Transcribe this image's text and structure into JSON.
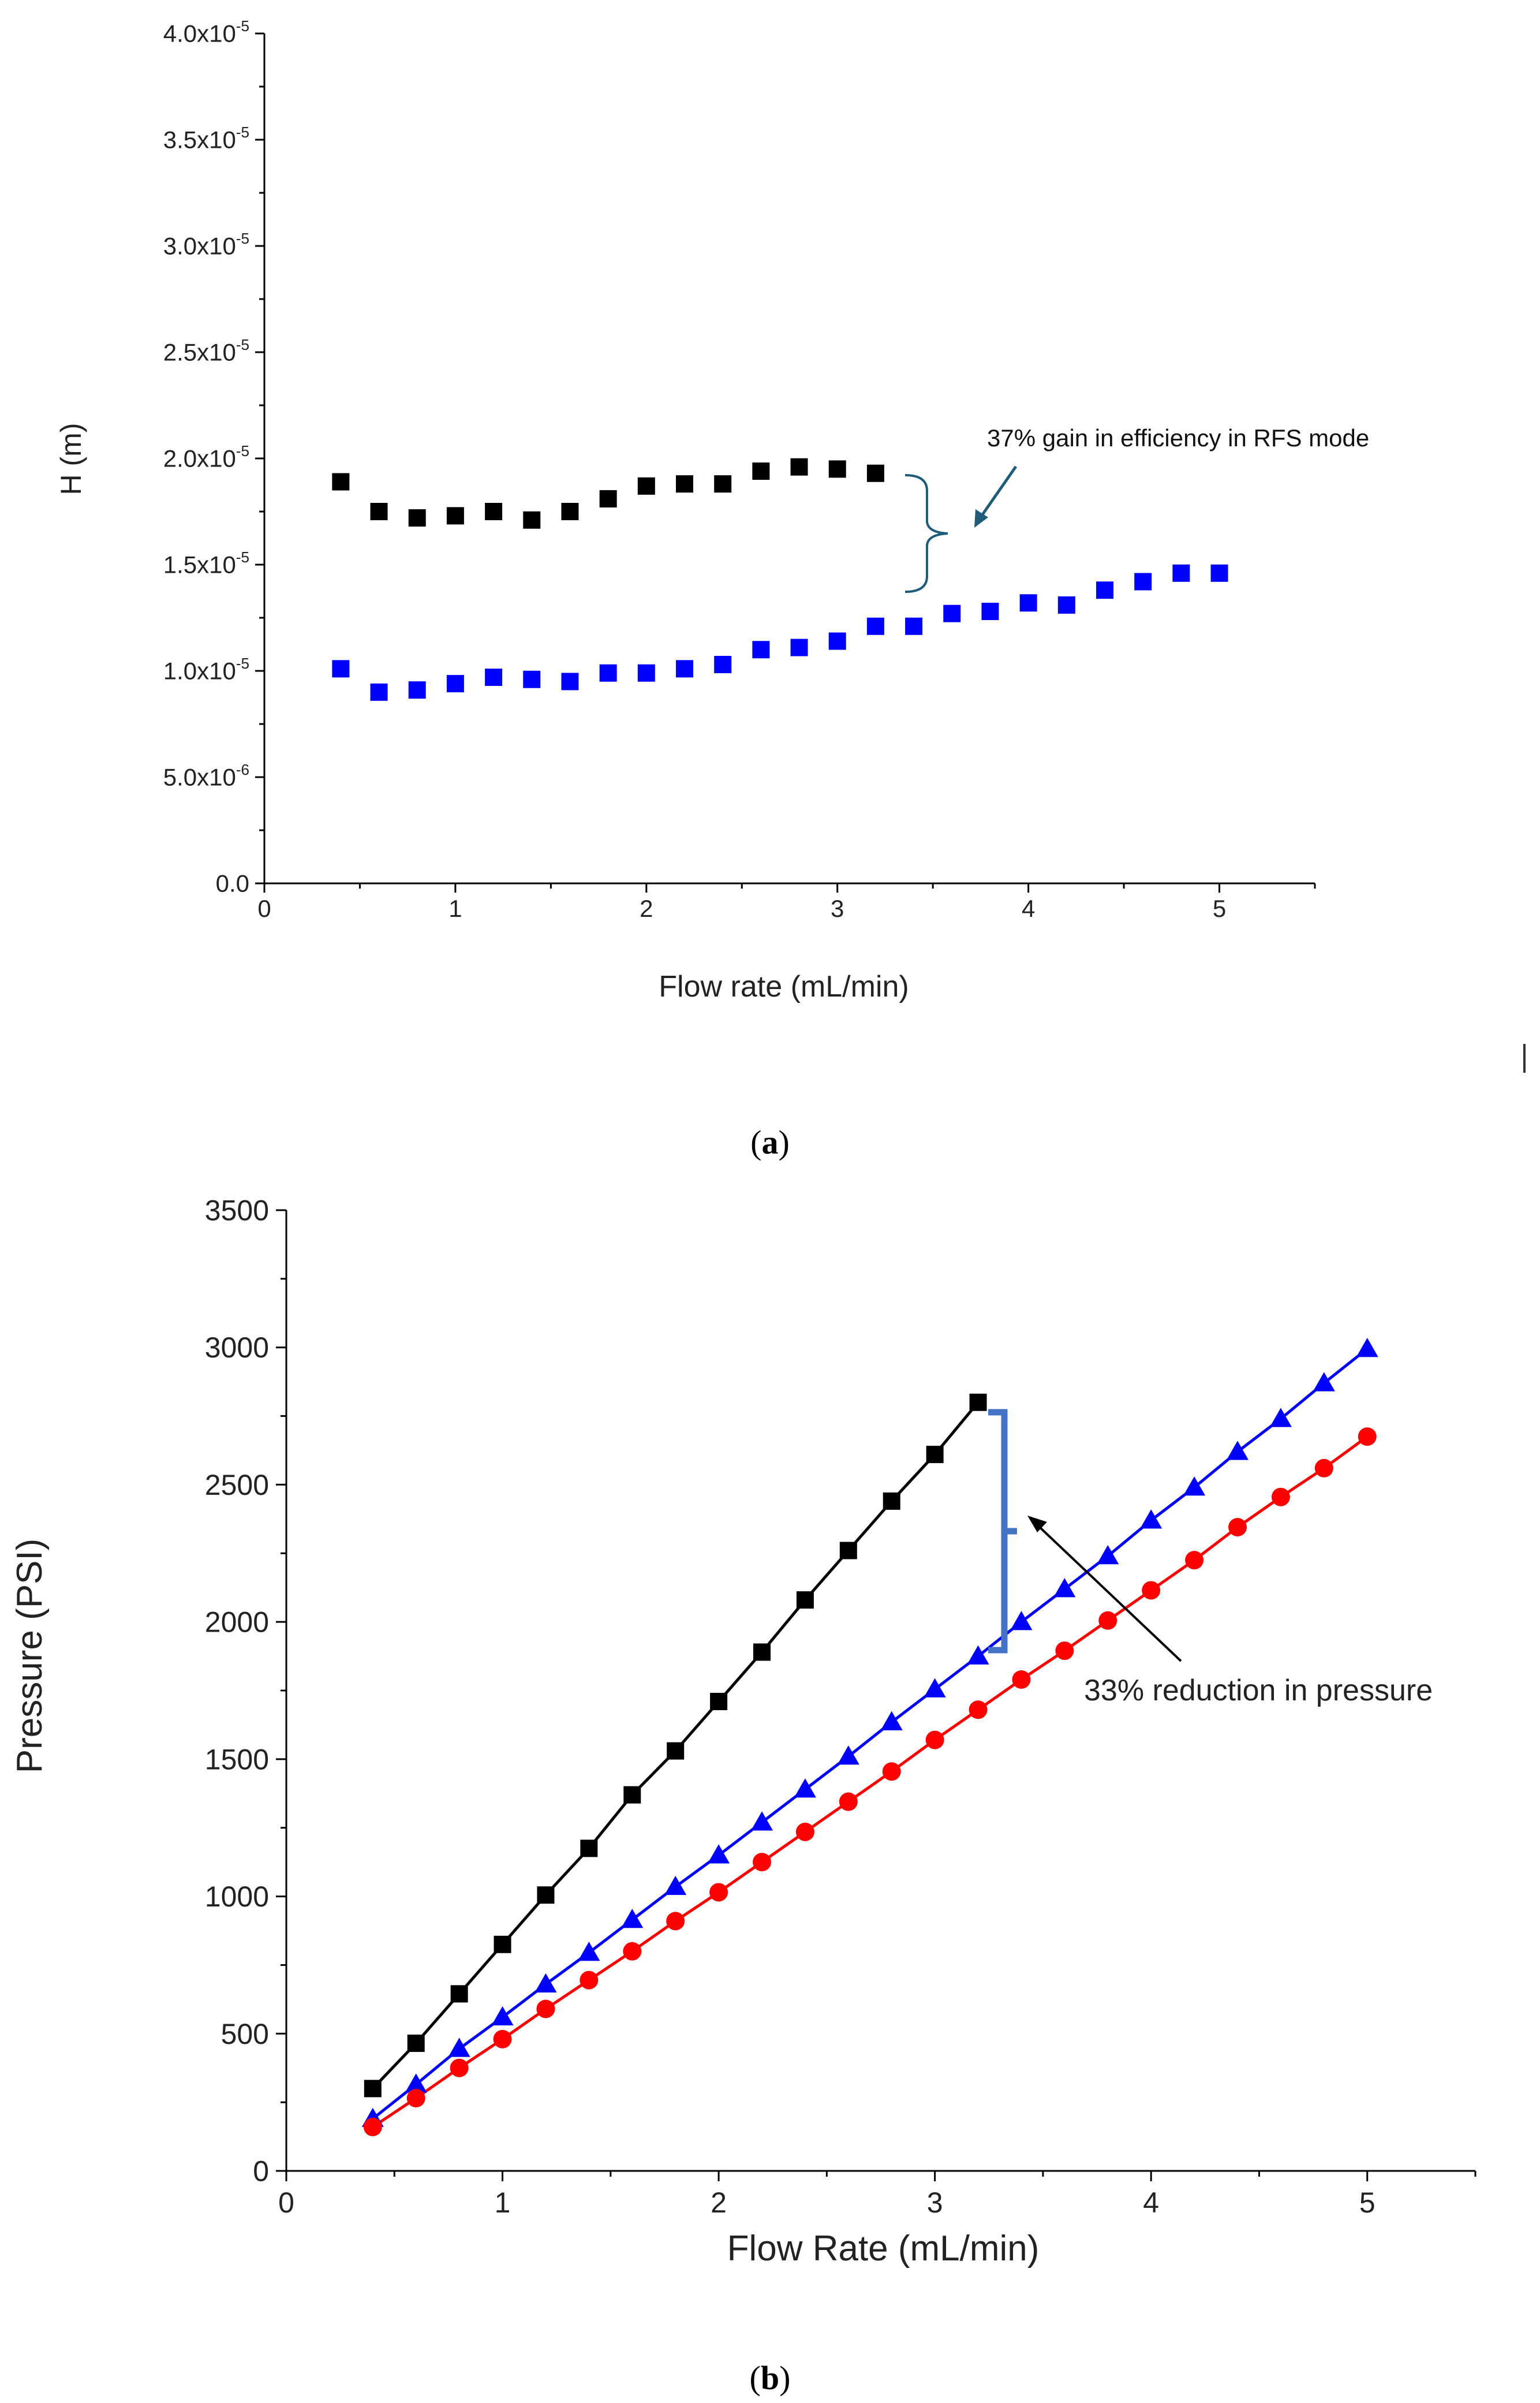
{
  "chart_data": [
    {
      "panel_label": "a",
      "type": "scatter",
      "xlabel": "Flow rate (mL/min)",
      "ylabel": "H (m)",
      "xlim": [
        0,
        5.5
      ],
      "ylim": [
        0,
        4e-05
      ],
      "x_ticks": [
        0,
        1,
        2,
        3,
        4,
        5
      ],
      "y_ticks": [
        {
          "value": 0,
          "label": "0.0"
        },
        {
          "value": 5e-06,
          "mantissa": "5.0x10",
          "exp": "-6"
        },
        {
          "value": 1e-05,
          "mantissa": "1.0x10",
          "exp": "-5"
        },
        {
          "value": 1.5e-05,
          "mantissa": "1.5x10",
          "exp": "-5"
        },
        {
          "value": 2e-05,
          "mantissa": "2.0x10",
          "exp": "-5"
        },
        {
          "value": 2.5e-05,
          "mantissa": "2.5x10",
          "exp": "-5"
        },
        {
          "value": 3e-05,
          "mantissa": "3.0x10",
          "exp": "-5"
        },
        {
          "value": 3.5e-05,
          "mantissa": "3.5x10",
          "exp": "-5"
        },
        {
          "value": 4e-05,
          "mantissa": "4.0x10",
          "exp": "-5"
        }
      ],
      "grid": false,
      "series": [
        {
          "color": "#000000",
          "marker": "square",
          "x": [
            0.4,
            0.6,
            0.8,
            1.0,
            1.2,
            1.4,
            1.6,
            1.8,
            2.0,
            2.2,
            2.4,
            2.6,
            2.8,
            3.0,
            3.2
          ],
          "y": [
            1.89e-05,
            1.75e-05,
            1.72e-05,
            1.73e-05,
            1.75e-05,
            1.71e-05,
            1.75e-05,
            1.81e-05,
            1.87e-05,
            1.88e-05,
            1.88e-05,
            1.94e-05,
            1.96e-05,
            1.95e-05,
            1.93e-05
          ]
        },
        {
          "color": "#0000ff",
          "marker": "square",
          "x": [
            0.4,
            0.6,
            0.8,
            1.0,
            1.2,
            1.4,
            1.6,
            1.8,
            2.0,
            2.2,
            2.4,
            2.6,
            2.8,
            3.0,
            3.2,
            3.4,
            3.6,
            3.8,
            4.0,
            4.2,
            4.4,
            4.6,
            4.8,
            5.0
          ],
          "y": [
            1.01e-05,
            9e-06,
            9.1e-06,
            9.4e-06,
            9.7e-06,
            9.6e-06,
            9.5e-06,
            9.9e-06,
            9.9e-06,
            1.01e-05,
            1.03e-05,
            1.1e-05,
            1.11e-05,
            1.14e-05,
            1.21e-05,
            1.21e-05,
            1.27e-05,
            1.28e-05,
            1.32e-05,
            1.31e-05,
            1.38e-05,
            1.42e-05,
            1.46e-05,
            1.46e-05
          ]
        }
      ],
      "annotation": {
        "text": "37% gain in efficiency in RFS mode",
        "color": "#1f5c7a"
      }
    },
    {
      "panel_label": "b",
      "type": "line",
      "xlabel": "Flow Rate (mL/min)",
      "ylabel": "Pressure (PSI)",
      "xlim": [
        0,
        5.5
      ],
      "ylim": [
        0,
        3500
      ],
      "x_ticks": [
        0,
        1,
        2,
        3,
        4,
        5
      ],
      "y_ticks": [
        0,
        500,
        1000,
        1500,
        2000,
        2500,
        3000,
        3500
      ],
      "grid": false,
      "series": [
        {
          "color": "#000000",
          "marker": "square",
          "x": [
            0.4,
            0.6,
            0.8,
            1.0,
            1.2,
            1.4,
            1.6,
            1.8,
            2.0,
            2.2,
            2.4,
            2.6,
            2.8,
            3.0,
            3.2
          ],
          "y": [
            300,
            465,
            645,
            825,
            1005,
            1175,
            1370,
            1530,
            1710,
            1890,
            2080,
            2260,
            2440,
            2610,
            2800
          ]
        },
        {
          "color": "#0000ff",
          "marker": "triangle",
          "x": [
            0.4,
            0.6,
            0.8,
            1.0,
            1.2,
            1.4,
            1.6,
            1.8,
            2.0,
            2.2,
            2.4,
            2.6,
            2.8,
            3.0,
            3.2,
            3.4,
            3.6,
            3.8,
            4.0,
            4.2,
            4.4,
            4.6,
            4.8,
            5.0
          ],
          "y": [
            190,
            315,
            445,
            560,
            680,
            795,
            915,
            1035,
            1150,
            1270,
            1390,
            1510,
            1635,
            1755,
            1875,
            2000,
            2120,
            2240,
            2370,
            2490,
            2620,
            2740,
            2870,
            2995
          ]
        },
        {
          "color": "#ff0000",
          "marker": "circle",
          "x": [
            0.4,
            0.6,
            0.8,
            1.0,
            1.2,
            1.4,
            1.6,
            1.8,
            2.0,
            2.2,
            2.4,
            2.6,
            2.8,
            3.0,
            3.2,
            3.4,
            3.6,
            3.8,
            4.0,
            4.2,
            4.4,
            4.6,
            4.8,
            5.0
          ],
          "y": [
            160,
            265,
            375,
            480,
            590,
            695,
            800,
            910,
            1015,
            1125,
            1235,
            1345,
            1455,
            1570,
            1680,
            1790,
            1895,
            2005,
            2115,
            2225,
            2345,
            2455,
            2560,
            2675
          ]
        }
      ],
      "annotation": {
        "text": "33% reduction in pressure",
        "color": "#4472c4"
      }
    }
  ]
}
